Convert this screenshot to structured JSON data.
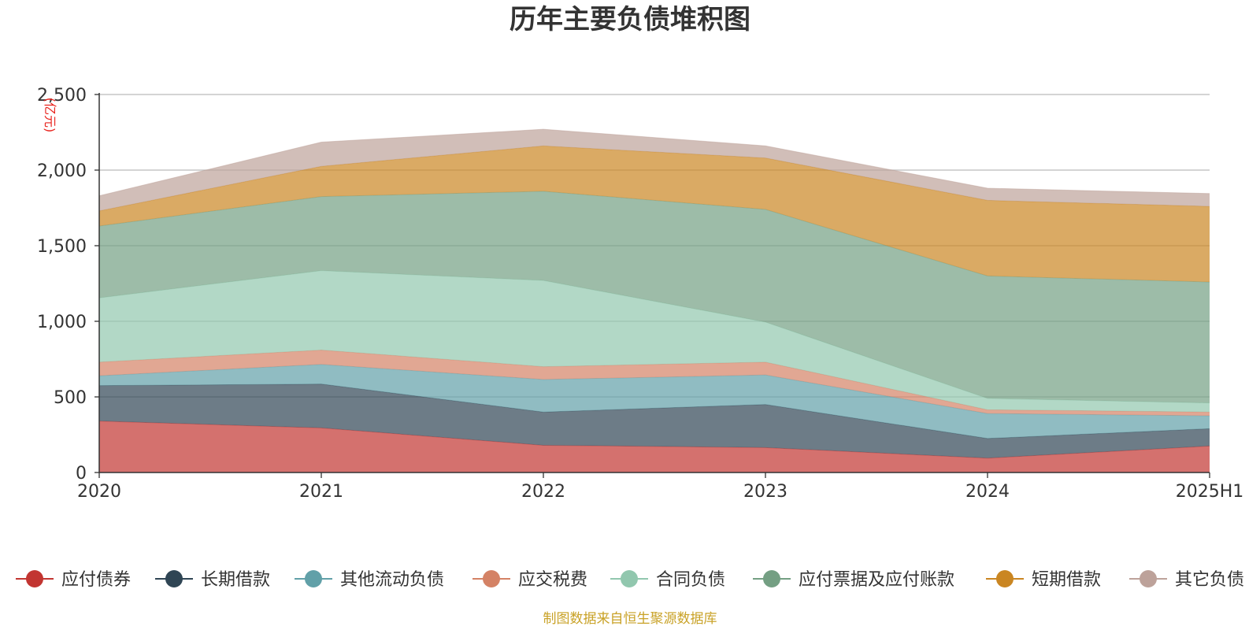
{
  "chart_data": {
    "type": "area",
    "stacked": true,
    "title": "历年主要负债堆积图",
    "unit_label": "(亿元)",
    "x": [
      "2020",
      "2021",
      "2022",
      "2023",
      "2024",
      "2025H1"
    ],
    "ylim": [
      0,
      2500
    ],
    "yticks": [
      "0",
      "500",
      "1,000",
      "1,500",
      "2,000",
      "2,500"
    ],
    "ytick_values": [
      0,
      500,
      1000,
      1500,
      2000,
      2500
    ],
    "grid": true,
    "legend_position": "bottom",
    "series": [
      {
        "name": "应付债券",
        "color": "#c23531",
        "values": [
          340,
          295,
          180,
          165,
          95,
          175
        ]
      },
      {
        "name": "长期借款",
        "color": "#2f4554",
        "values": [
          235,
          290,
          220,
          285,
          130,
          115
        ]
      },
      {
        "name": "其他流动负债",
        "color": "#61a0a8",
        "values": [
          65,
          130,
          215,
          195,
          165,
          85
        ]
      },
      {
        "name": "应交税费",
        "color": "#d48265",
        "values": [
          90,
          95,
          85,
          85,
          25,
          25
        ]
      },
      {
        "name": "合同负债",
        "color": "#91c7ae",
        "values": [
          425,
          525,
          570,
          265,
          75,
          60
        ]
      },
      {
        "name": "应付票据及应付账款",
        "color": "#749f83",
        "values": [
          475,
          490,
          590,
          745,
          810,
          800
        ]
      },
      {
        "name": "短期借款",
        "color": "#ca8622",
        "values": [
          100,
          200,
          300,
          340,
          500,
          500
        ]
      },
      {
        "name": "其它负债",
        "color": "#bda29a",
        "values": [
          100,
          160,
          110,
          80,
          80,
          85
        ]
      }
    ],
    "source_note": "制图数据来自恒生聚源数据库"
  }
}
